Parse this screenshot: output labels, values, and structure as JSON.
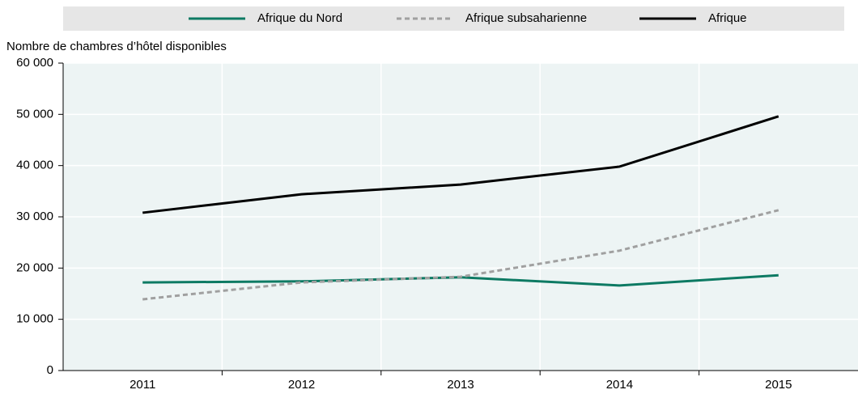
{
  "chart_data": {
    "type": "line",
    "y_axis_label": "Nombre de chambres d’hôtel disponibles",
    "categories": [
      "2011",
      "2012",
      "2013",
      "2014",
      "2015"
    ],
    "series": [
      {
        "name": "Afrique du Nord",
        "color": "#0d7a63",
        "line_style": "solid",
        "values": [
          17200,
          17400,
          18200,
          16600,
          18600
        ]
      },
      {
        "name": "Afrique subsaharienne",
        "color": "#a0a0a0",
        "line_style": "dashed",
        "values": [
          13900,
          17200,
          18300,
          23400,
          31300
        ]
      },
      {
        "name": "Afrique",
        "color": "#000000",
        "line_style": "solid",
        "values": [
          30800,
          34400,
          36300,
          39800,
          49600
        ]
      }
    ],
    "ylim": [
      0,
      60000
    ],
    "yticks": [
      0,
      {
        "value": 10000,
        "label": "10 000"
      },
      {
        "value": 20000,
        "label": "20 000"
      },
      {
        "value": 30000,
        "label": "30 000"
      },
      {
        "value": 40000,
        "label": "40 000"
      },
      {
        "value": 50000,
        "label": "50 000"
      },
      {
        "value": 60000,
        "label": "60 000"
      }
    ],
    "grid": true,
    "legend": "top"
  }
}
